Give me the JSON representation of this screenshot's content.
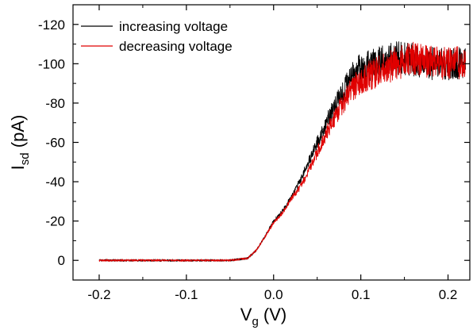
{
  "chart_data": {
    "type": "line",
    "xlabel": {
      "main": "V",
      "sub": "g",
      "unit": " (V)"
    },
    "ylabel": {
      "main": "I",
      "sub": "sd",
      "unit": " (pA)"
    },
    "xlim": [
      -0.23,
      0.225
    ],
    "ylim": [
      -130,
      10
    ],
    "y_reversed": true,
    "x_ticks": [
      -0.2,
      -0.1,
      0.0,
      0.1,
      0.2
    ],
    "x_tick_labels": [
      "-0.2",
      "-0.1",
      "0.0",
      "0.1",
      "0.2"
    ],
    "y_ticks": [
      0,
      -20,
      -40,
      -60,
      -80,
      -100,
      -120
    ],
    "y_tick_labels": [
      "0",
      "-20",
      "-40",
      "-60",
      "-80",
      "-100",
      "-120"
    ],
    "grid": false,
    "legend_position": "top-left",
    "series": [
      {
        "name": "increasing voltage",
        "color": "#000000",
        "x": [
          -0.2,
          -0.15,
          -0.1,
          -0.05,
          -0.03,
          -0.02,
          -0.01,
          0.0,
          0.01,
          0.02,
          0.03,
          0.04,
          0.05,
          0.06,
          0.07,
          0.08,
          0.09,
          0.1,
          0.12,
          0.14,
          0.16,
          0.18,
          0.2,
          0.22
        ],
        "y": [
          0,
          0,
          0,
          0,
          -1,
          -5,
          -12,
          -20,
          -25,
          -32,
          -40,
          -50,
          -60,
          -70,
          -78,
          -86,
          -93,
          -98,
          -100,
          -103,
          -102,
          -100,
          -100,
          -100
        ]
      },
      {
        "name": "decreasing voltage",
        "color": "#e00000",
        "x": [
          -0.2,
          -0.15,
          -0.1,
          -0.05,
          -0.03,
          -0.02,
          -0.01,
          0.0,
          0.01,
          0.02,
          0.03,
          0.04,
          0.05,
          0.06,
          0.07,
          0.08,
          0.09,
          0.1,
          0.12,
          0.14,
          0.16,
          0.18,
          0.2,
          0.22
        ],
        "y": [
          0,
          0,
          0,
          0,
          -1,
          -5,
          -12,
          -19,
          -24,
          -31,
          -37,
          -45,
          -55,
          -64,
          -73,
          -80,
          -87,
          -92,
          -96,
          -100,
          -103,
          -101,
          -100,
          -101
        ]
      }
    ]
  }
}
